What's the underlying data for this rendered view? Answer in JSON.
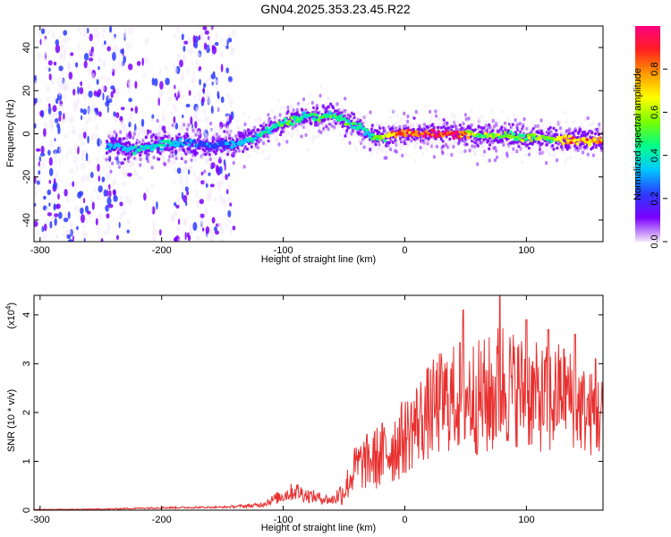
{
  "title": "GN04.2025.353.23.45.R22",
  "chart_data": [
    {
      "type": "heatmap",
      "xlabel": "Height of straight line (km)",
      "ylabel": "Frequency (Hz)",
      "xlim": [
        -305,
        163
      ],
      "ylim": [
        -50,
        50
      ],
      "xticks": [
        -300,
        -200,
        -100,
        0,
        100
      ],
      "yticks": [
        -40,
        -20,
        0,
        20,
        40
      ],
      "xtick_labels": [
        "-300",
        "-200",
        "-100",
        "0",
        "100"
      ],
      "ytick_labels": [
        "-40",
        "-20",
        "0",
        "20",
        "40"
      ],
      "colorbar": {
        "label": "Normalized spectral amplitude",
        "range": [
          0,
          1
        ],
        "ticks": [
          0.0,
          0.2,
          0.4,
          0.6,
          0.8
        ],
        "tick_labels": [
          "0.0",
          "0.2",
          "0.4",
          "0.6",
          "0.8"
        ],
        "colors": [
          "#f2e6f7",
          "#7b00ff",
          "#2b3bff",
          "#00c8ff",
          "#00ff8a",
          "#7aff00",
          "#ffff00",
          "#ff9a00",
          "#ff2020",
          "#ff0080"
        ]
      },
      "ridge": {
        "x": [
          -240,
          -220,
          -200,
          -180,
          -160,
          -150,
          -140,
          -130,
          -120,
          -110,
          -100,
          -90,
          -80,
          -70,
          -60,
          -50,
          -40,
          -30,
          -25,
          -20,
          -10,
          0,
          20,
          40,
          60,
          80,
          100,
          120,
          140,
          163
        ],
        "frequency": [
          -6,
          -7,
          -5,
          -4,
          -6,
          -4,
          -5,
          -3,
          -1,
          2,
          5,
          7,
          8,
          7,
          9,
          6,
          4,
          0,
          -2,
          -2,
          0,
          0,
          0,
          0,
          -1,
          -1,
          -2,
          -2,
          -3,
          -3
        ],
        "amplitude": [
          0.35,
          0.4,
          0.4,
          0.35,
          0.3,
          0.3,
          0.35,
          0.4,
          0.45,
          0.45,
          0.5,
          0.5,
          0.45,
          0.55,
          0.5,
          0.5,
          0.45,
          0.4,
          0.5,
          0.6,
          0.75,
          0.9,
          0.95,
          0.9,
          0.6,
          0.6,
          0.55,
          0.6,
          0.8,
          0.8
        ]
      },
      "noise_region_x": [
        -305,
        -140
      ]
    },
    {
      "type": "line",
      "xlabel": "Height of straight line (km)",
      "ylabel": "SNR (10 * v/v)",
      "multiplier_label": "(x10",
      "multiplier_exponent": "4",
      "multiplier_close": ")",
      "xlim": [
        -305,
        163
      ],
      "ylim": [
        0,
        4.4
      ],
      "xticks": [
        -300,
        -200,
        -100,
        0,
        100
      ],
      "yticks": [
        0,
        1,
        2,
        3,
        4
      ],
      "xtick_labels": [
        "-300",
        "-200",
        "-100",
        "0",
        "100"
      ],
      "ytick_labels": [
        "0",
        "1",
        "2",
        "3",
        "4"
      ],
      "color": "#e8302f",
      "envelope": {
        "x": [
          -305,
          -250,
          -200,
          -150,
          -120,
          -100,
          -90,
          -80,
          -70,
          -60,
          -50,
          -40,
          -30,
          -20,
          -10,
          0,
          10,
          20,
          30,
          40,
          50,
          60,
          70,
          80,
          90,
          100,
          110,
          120,
          130,
          140,
          150,
          163
        ],
        "mean": [
          0.01,
          0.02,
          0.05,
          0.06,
          0.1,
          0.3,
          0.4,
          0.3,
          0.25,
          0.2,
          0.4,
          0.9,
          1.0,
          1.1,
          1.3,
          1.5,
          1.8,
          2.0,
          2.2,
          2.3,
          2.4,
          2.3,
          2.3,
          2.6,
          2.5,
          2.4,
          2.3,
          2.2,
          2.5,
          2.2,
          2.0,
          1.9
        ],
        "spread": [
          0.01,
          0.01,
          0.02,
          0.02,
          0.05,
          0.15,
          0.2,
          0.15,
          0.12,
          0.1,
          0.3,
          0.5,
          0.6,
          0.7,
          0.8,
          0.8,
          0.9,
          1.0,
          1.1,
          1.1,
          1.3,
          1.2,
          1.3,
          1.4,
          1.2,
          1.2,
          1.1,
          1.2,
          1.0,
          1.0,
          0.9,
          0.9
        ]
      },
      "peaks": [
        {
          "x": 48,
          "y": 4.1
        },
        {
          "x": 78,
          "y": 4.4
        },
        {
          "x": 100,
          "y": 3.9
        },
        {
          "x": 118,
          "y": 3.7
        },
        {
          "x": 140,
          "y": 3.6
        },
        {
          "x": 157,
          "y": 3.1
        }
      ]
    }
  ]
}
